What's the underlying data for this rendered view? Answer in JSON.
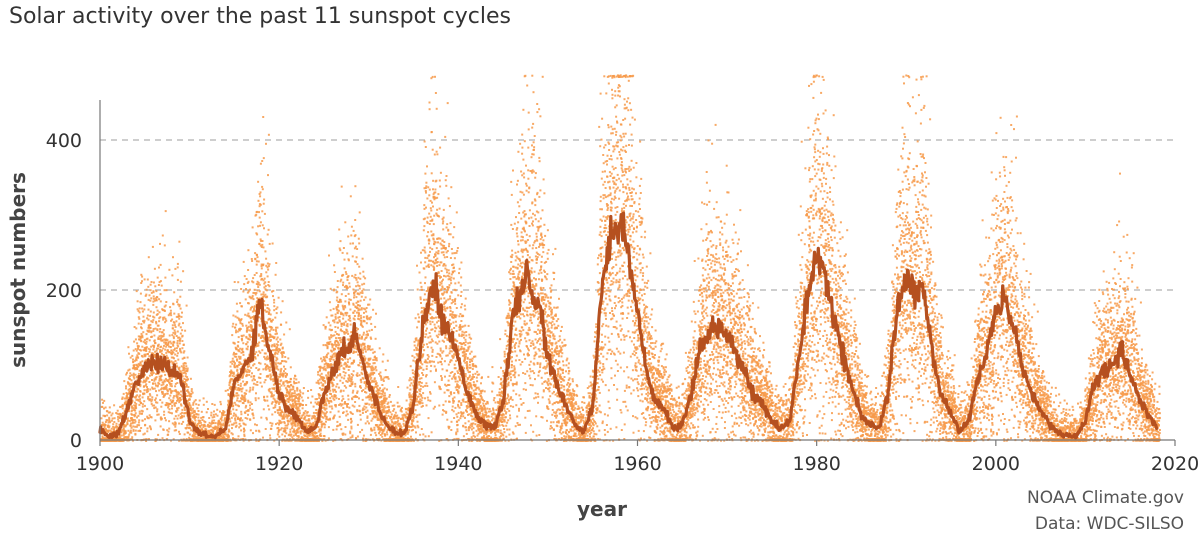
{
  "title": "Solar activity over the past 11 sunspot cycles",
  "credits": {
    "line1": "NOAA Climate.gov",
    "line2": "Data: WDC-SILSO"
  },
  "colors": {
    "daily_points": "#f79a4a",
    "smoothed_line": "#b5501f",
    "gridline": "#b0b0b0",
    "axis": "#777777"
  },
  "chart_data": {
    "type": "scatter",
    "title": "Solar activity over the past 11 sunspot cycles",
    "xlabel": "year",
    "ylabel": "sunspot numbers",
    "xlim": [
      1900,
      2020
    ],
    "ylim": [
      0,
      460
    ],
    "x_ticks": [
      1900,
      1920,
      1940,
      1960,
      1980,
      2000,
      2020
    ],
    "y_ticks": [
      0,
      200,
      400
    ],
    "grid": "horizontal dashed at 200 and 400",
    "legend": "none",
    "series": [
      {
        "type": "scatter",
        "description_visible": "daily sunspot numbers (dots)",
        "cycle_envelope": [
          {
            "minimum_year": 1901.5,
            "maximum_year": 1906.5,
            "peak_daily": 300
          },
          {
            "minimum_year": 1913.5,
            "maximum_year": 1917.8,
            "peak_daily": 445
          },
          {
            "minimum_year": 1923.5,
            "maximum_year": 1928.5,
            "peak_daily": 290
          },
          {
            "minimum_year": 1933.7,
            "maximum_year": 1937.5,
            "peak_daily": 330
          },
          {
            "minimum_year": 1944.0,
            "maximum_year": 1947.7,
            "peak_daily": 460
          },
          {
            "minimum_year": 1954.2,
            "maximum_year": 1958.2,
            "peak_daily": 480
          },
          {
            "minimum_year": 1964.7,
            "maximum_year": 1968.9,
            "peak_daily": 305
          },
          {
            "minimum_year": 1976.2,
            "maximum_year": 1980.0,
            "peak_daily": 425
          },
          {
            "minimum_year": 1986.7,
            "maximum_year": 1989.9,
            "peak_daily": 410
          },
          {
            "minimum_year": 1996.4,
            "maximum_year": 2001.9,
            "peak_daily": 355
          },
          {
            "minimum_year": 2008.9,
            "maximum_year": 2014.3,
            "peak_daily": 235
          }
        ]
      },
      {
        "type": "line",
        "description_visible": "smoothed monthly mean",
        "x": [
          1900,
          1901,
          1902,
          1903,
          1904,
          1905,
          1906,
          1907,
          1908,
          1909,
          1910,
          1911,
          1912,
          1913,
          1914,
          1915,
          1916,
          1917,
          1917.8,
          1918.5,
          1919,
          1920,
          1921,
          1922,
          1923,
          1924,
          1925,
          1926,
          1927,
          1928,
          1928.5,
          1929,
          1930,
          1931,
          1932,
          1933,
          1934,
          1935,
          1936,
          1937,
          1937.5,
          1938,
          1939,
          1940,
          1941,
          1942,
          1943,
          1944,
          1945,
          1946,
          1947,
          1947.7,
          1948,
          1949,
          1950,
          1951,
          1952,
          1953,
          1954,
          1955,
          1956,
          1957,
          1958,
          1958.2,
          1959,
          1960,
          1961,
          1962,
          1963,
          1964,
          1965,
          1966,
          1967,
          1968,
          1969,
          1970,
          1971,
          1972,
          1973,
          1974,
          1975,
          1976,
          1977,
          1978,
          1979,
          1980,
          1981,
          1982,
          1983,
          1984,
          1985,
          1986,
          1987,
          1988,
          1989,
          1990,
          1991,
          1992,
          1993,
          1994,
          1995,
          1996,
          1997,
          1998,
          1999,
          2000,
          2001,
          2002,
          2003,
          2004,
          2005,
          2006,
          2007,
          2008,
          2009,
          2010,
          2011,
          2012,
          2013,
          2014,
          2015,
          2016,
          2017,
          2018
        ],
        "y": [
          15,
          5,
          8,
          40,
          75,
          95,
          105,
          100,
          90,
          85,
          25,
          10,
          5,
          5,
          15,
          75,
          95,
          120,
          190,
          140,
          120,
          60,
          40,
          30,
          12,
          15,
          60,
          95,
          115,
          130,
          145,
          120,
          75,
          45,
          20,
          10,
          10,
          50,
          150,
          205,
          200,
          160,
          145,
          110,
          65,
          35,
          20,
          15,
          50,
          160,
          190,
          230,
          200,
          180,
          110,
          75,
          45,
          20,
          10,
          45,
          200,
          270,
          290,
          300,
          250,
          170,
          90,
          50,
          40,
          15,
          20,
          60,
          120,
          145,
          150,
          145,
          120,
          90,
          60,
          45,
          25,
          15,
          25,
          110,
          190,
          235,
          220,
          160,
          110,
          70,
          30,
          20,
          15,
          65,
          175,
          225,
          195,
          200,
          110,
          55,
          35,
          12,
          25,
          85,
          115,
          175,
          185,
          150,
          100,
          60,
          40,
          20,
          10,
          5,
          5,
          25,
          75,
          95,
          95,
          120,
          90,
          55,
          35,
          15
        ]
      }
    ]
  }
}
